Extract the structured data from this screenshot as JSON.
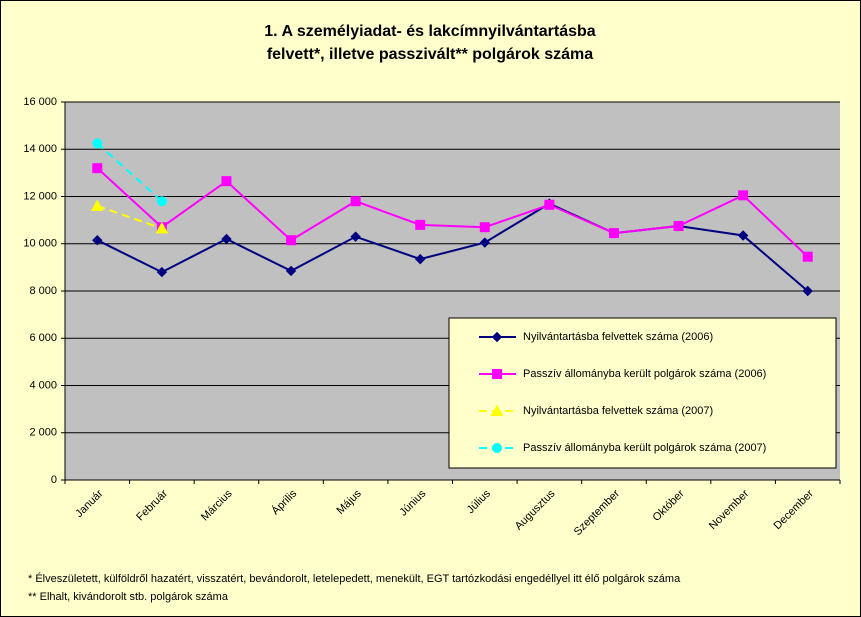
{
  "chart_data": {
    "type": "line",
    "title": [
      "1. A személyiadat- és lakcímnyilvántartásba",
      "felvett*, illetve passzivált** polgárok száma"
    ],
    "categories": [
      "Január",
      "Február",
      "Március",
      "Április",
      "Május",
      "Június",
      "Július",
      "Augusztus",
      "Szeptember",
      "Október",
      "November",
      "December"
    ],
    "series": [
      {
        "name": "Nyilvántartásba felvettek száma (2006)",
        "color": "#000080",
        "marker": "diamond",
        "dashed": false,
        "values": [
          10150,
          8800,
          10200,
          8850,
          10300,
          9350,
          10050,
          11700,
          10450,
          10750,
          10350,
          8000
        ]
      },
      {
        "name": "Passzív állományba került polgárok száma (2006)",
        "color": "#ff00ff",
        "marker": "square",
        "dashed": false,
        "values": [
          13200,
          10700,
          12650,
          10150,
          11800,
          10800,
          10700,
          11650,
          10450,
          10750,
          12050,
          9450
        ]
      },
      {
        "name": "Nyilvántartásba felvettek száma (2007)",
        "color": "#ffff00",
        "marker": "triangle",
        "dashed": true,
        "values": [
          11600,
          10650,
          null,
          null,
          null,
          null,
          null,
          null,
          null,
          null,
          null,
          null
        ]
      },
      {
        "name": "Passzív állományba került polgárok száma (2007)",
        "color": "#00ffff",
        "marker": "circle",
        "dashed": true,
        "values": [
          14250,
          11800,
          null,
          null,
          null,
          null,
          null,
          null,
          null,
          null,
          null,
          null
        ]
      }
    ],
    "ylim": [
      0,
      16000
    ],
    "yticks": [
      0,
      {
        "value": 2000,
        "label": "2 000"
      },
      {
        "value": 4000,
        "label": "4 000"
      },
      {
        "value": 6000,
        "label": "6 000"
      },
      {
        "value": 8000,
        "label": "8 000"
      },
      {
        "value": 10000,
        "label": "10 000"
      },
      {
        "value": 12000,
        "label": "12 000"
      },
      {
        "value": 14000,
        "label": "14 000"
      },
      {
        "value": 16000,
        "label": "16 000"
      }
    ],
    "grid": true,
    "legend": "lower-right",
    "notes": [
      "* Élveszületett, külföldről hazatért, visszatért, bevándorolt, letelepedett, menekült, EGT tartózkodási engedéllyel itt élő  polgárok száma",
      "** Elhalt, kivándorolt stb. polgárok száma"
    ]
  }
}
